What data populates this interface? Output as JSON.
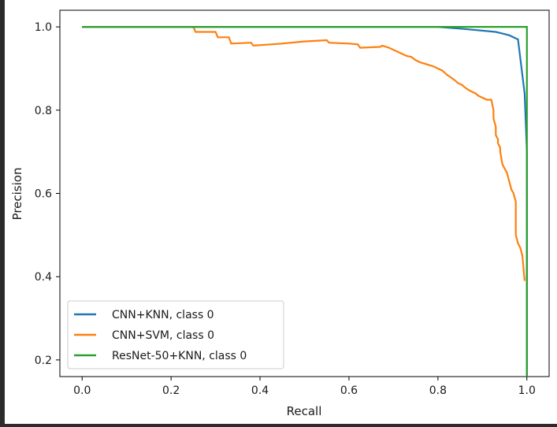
{
  "chart_data": {
    "type": "line",
    "title": "",
    "xlabel": "Recall",
    "ylabel": "Precision",
    "xlim": [
      -0.05,
      1.05
    ],
    "ylim": [
      0.16,
      1.04
    ],
    "xticks": [
      0.0,
      0.2,
      0.4,
      0.6,
      0.8,
      1.0
    ],
    "xtick_labels": [
      "0.0",
      "0.2",
      "0.4",
      "0.6",
      "0.8",
      "1.0"
    ],
    "yticks": [
      0.2,
      0.4,
      0.6,
      0.8,
      1.0
    ],
    "ytick_labels": [
      "0.2",
      "0.4",
      "0.6",
      "0.8",
      "1.0"
    ],
    "grid": false,
    "legend_position": "lower-left",
    "series": [
      {
        "name": "CNN+KNN, class 0",
        "color": "#1f77b4",
        "x": [
          0.0,
          0.8,
          0.86,
          0.93,
          0.96,
          0.98,
          0.995,
          1.0,
          1.0
        ],
        "y": [
          1.0,
          1.0,
          0.995,
          0.988,
          0.98,
          0.97,
          0.84,
          0.7,
          0.16
        ]
      },
      {
        "name": "CNN+SVM, class 0",
        "color": "#ff7f0e",
        "x": [
          0.0,
          0.25,
          0.255,
          0.3,
          0.305,
          0.33,
          0.335,
          0.38,
          0.385,
          0.45,
          0.5,
          0.55,
          0.555,
          0.6,
          0.62,
          0.625,
          0.67,
          0.675,
          0.69,
          0.7,
          0.72,
          0.73,
          0.74,
          0.75,
          0.76,
          0.775,
          0.79,
          0.8,
          0.81,
          0.82,
          0.83,
          0.84,
          0.845,
          0.855,
          0.86,
          0.87,
          0.875,
          0.885,
          0.89,
          0.9,
          0.91,
          0.92,
          0.925,
          0.925,
          0.93,
          0.93,
          0.935,
          0.935,
          0.94,
          0.94,
          0.945,
          0.95,
          0.955,
          0.96,
          0.965,
          0.97,
          0.975,
          0.975,
          0.98,
          0.985,
          0.99,
          0.995
        ],
        "y": [
          1.0,
          1.0,
          0.988,
          0.988,
          0.975,
          0.975,
          0.96,
          0.962,
          0.955,
          0.96,
          0.965,
          0.968,
          0.962,
          0.96,
          0.958,
          0.95,
          0.952,
          0.955,
          0.95,
          0.945,
          0.935,
          0.93,
          0.928,
          0.92,
          0.915,
          0.91,
          0.905,
          0.9,
          0.895,
          0.885,
          0.878,
          0.87,
          0.865,
          0.86,
          0.855,
          0.848,
          0.845,
          0.84,
          0.835,
          0.83,
          0.825,
          0.825,
          0.8,
          0.78,
          0.76,
          0.74,
          0.73,
          0.72,
          0.71,
          0.7,
          0.67,
          0.66,
          0.65,
          0.63,
          0.61,
          0.6,
          0.58,
          0.5,
          0.48,
          0.47,
          0.45,
          0.39
        ]
      },
      {
        "name": "ResNet-50+KNN, class 0",
        "color": "#2ca02c",
        "x": [
          0.0,
          1.0,
          1.0
        ],
        "y": [
          1.0,
          1.0,
          0.16
        ]
      }
    ]
  }
}
